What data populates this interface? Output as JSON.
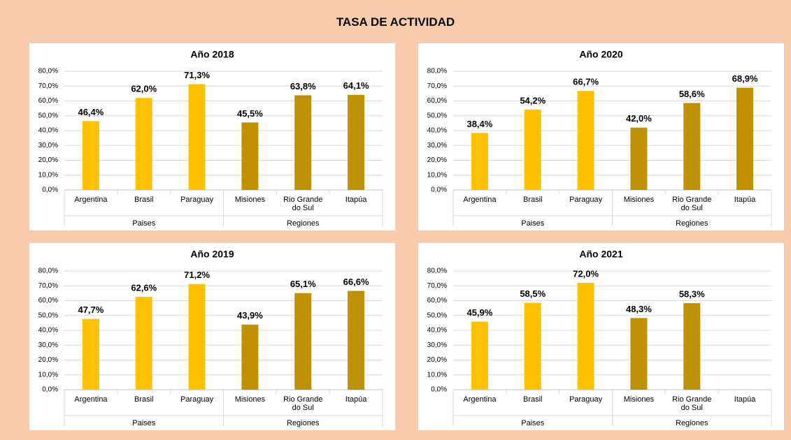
{
  "title": "TASA DE ACTIVIDAD",
  "chart_data": [
    {
      "type": "bar",
      "title": "Año 2018",
      "ylim": [
        0,
        80
      ],
      "yticks": [
        {
          "value": 0,
          "label": "0,0%"
        },
        {
          "value": 10,
          "label": "10,0%"
        },
        {
          "value": 20,
          "label": "20,0%"
        },
        {
          "value": 30,
          "label": "30,0%"
        },
        {
          "value": 40,
          "label": "40,0%"
        },
        {
          "value": 50,
          "label": "50,0%"
        },
        {
          "value": 60,
          "label": "60,0%"
        },
        {
          "value": 70,
          "label": "70,0%"
        },
        {
          "value": 80,
          "label": "80,0%"
        }
      ],
      "grid": true,
      "groups": [
        {
          "name": "Paises",
          "color": "#FFC000",
          "categories": [
            "Argentina",
            "Brasil",
            "Paraguay"
          ],
          "values": [
            46.4,
            62.0,
            71.3
          ],
          "value_labels": [
            "46,4%",
            "62,0%",
            "71,3%"
          ]
        },
        {
          "name": "Regiones",
          "color": "#BF9000",
          "categories": [
            "Misiones",
            "Rio Grande do Sul",
            "Itapúa"
          ],
          "values": [
            45.5,
            63.8,
            64.1
          ],
          "value_labels": [
            "45,5%",
            "63,8%",
            "64,1%"
          ]
        }
      ]
    },
    {
      "type": "bar",
      "title": "Año 2020",
      "ylim": [
        0,
        80
      ],
      "yticks": [
        {
          "value": 0,
          "label": "0,0%"
        },
        {
          "value": 10,
          "label": "10,0%"
        },
        {
          "value": 20,
          "label": "20,0%"
        },
        {
          "value": 30,
          "label": "30,0%"
        },
        {
          "value": 40,
          "label": "40,0%"
        },
        {
          "value": 50,
          "label": "50,0%"
        },
        {
          "value": 60,
          "label": "60,0%"
        },
        {
          "value": 70,
          "label": "70,0%"
        },
        {
          "value": 80,
          "label": "80,0%"
        }
      ],
      "grid": true,
      "groups": [
        {
          "name": "Paises",
          "color": "#FFC000",
          "categories": [
            "Argentina",
            "Brasil",
            "Paraguay"
          ],
          "values": [
            38.4,
            54.2,
            66.7
          ],
          "value_labels": [
            "38,4%",
            "54,2%",
            "66,7%"
          ]
        },
        {
          "name": "Regiones",
          "color": "#BF9000",
          "categories": [
            "Misiones",
            "Rio Grande do Sul",
            "Itapúa"
          ],
          "values": [
            42.0,
            58.6,
            68.9
          ],
          "value_labels": [
            "42,0%",
            "58,6%",
            "68,9%"
          ]
        }
      ]
    },
    {
      "type": "bar",
      "title": "Año 2019",
      "ylim": [
        0,
        80
      ],
      "yticks": [
        {
          "value": 0,
          "label": "0,0%"
        },
        {
          "value": 10,
          "label": "10,0%"
        },
        {
          "value": 20,
          "label": "20,0%"
        },
        {
          "value": 30,
          "label": "30,0%"
        },
        {
          "value": 40,
          "label": "40,0%"
        },
        {
          "value": 50,
          "label": "50,0%"
        },
        {
          "value": 60,
          "label": "60,0%"
        },
        {
          "value": 70,
          "label": "70,0%"
        },
        {
          "value": 80,
          "label": "80,0%"
        }
      ],
      "grid": true,
      "groups": [
        {
          "name": "Paises",
          "color": "#FFC000",
          "categories": [
            "Argentina",
            "Brasil",
            "Paraguay"
          ],
          "values": [
            47.7,
            62.6,
            71.2
          ],
          "value_labels": [
            "47,7%",
            "62,6%",
            "71,2%"
          ]
        },
        {
          "name": "Regiones",
          "color": "#BF9000",
          "categories": [
            "Misiones",
            "Rio Grande do Sul",
            "Itapúa"
          ],
          "values": [
            43.9,
            65.1,
            66.6
          ],
          "value_labels": [
            "43,9%",
            "65,1%",
            "66,6%"
          ]
        }
      ]
    },
    {
      "type": "bar",
      "title": "Año 2021",
      "ylim": [
        0,
        80
      ],
      "yticks": [
        {
          "value": 0,
          "label": "0,0%"
        },
        {
          "value": 10,
          "label": "10,0%"
        },
        {
          "value": 20,
          "label": "20,0%"
        },
        {
          "value": 30,
          "label": "30,0%"
        },
        {
          "value": 40,
          "label": "40,0%"
        },
        {
          "value": 50,
          "label": "50,0%"
        },
        {
          "value": 60,
          "label": "60,0%"
        },
        {
          "value": 70,
          "label": "70,0%"
        },
        {
          "value": 80,
          "label": "80,0%"
        }
      ],
      "grid": true,
      "groups": [
        {
          "name": "Paises",
          "color": "#FFC000",
          "categories": [
            "Argentina",
            "Brasil",
            "Paraguay"
          ],
          "values": [
            45.9,
            58.5,
            72.0
          ],
          "value_labels": [
            "45,9%",
            "58,5%",
            "72,0%"
          ]
        },
        {
          "name": "Regiones",
          "color": "#BF9000",
          "categories": [
            "Misiones",
            "Rio Grande do Sul",
            "Itapúa"
          ],
          "values": [
            48.3,
            58.3,
            null
          ],
          "value_labels": [
            "48,3%",
            "58,3%",
            null
          ]
        }
      ]
    }
  ]
}
